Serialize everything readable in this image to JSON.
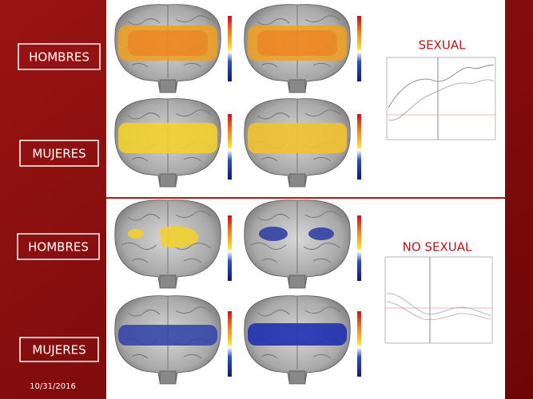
{
  "panels": [
    {
      "title": "SEXUAL",
      "rows": [
        "HOMBRES",
        "MUJERES"
      ]
    },
    {
      "title": "NO SEXUAL",
      "rows": [
        "HOMBRES",
        "MUJERES"
      ]
    }
  ],
  "footer": {
    "date": "10/31/2016"
  }
}
